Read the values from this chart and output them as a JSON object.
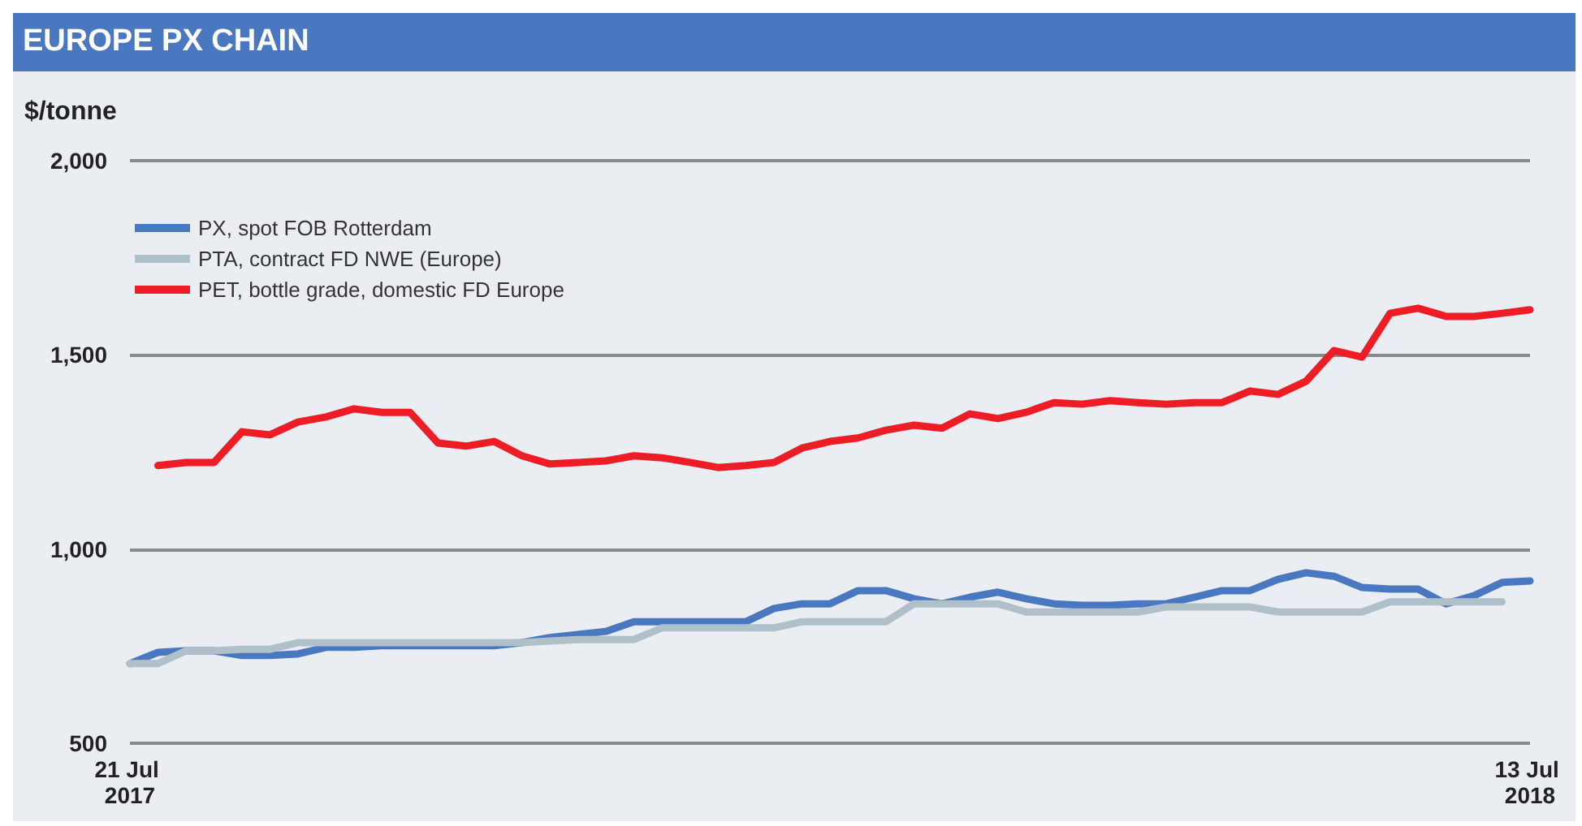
{
  "chart_data": {
    "type": "line",
    "title": "EUROPE PX CHAIN",
    "ylabel": "$/tonne",
    "categories": [
      "21 Jul 2017",
      null,
      null,
      null,
      null,
      null,
      null,
      null,
      null,
      null,
      null,
      null,
      null,
      null,
      null,
      null,
      null,
      null,
      null,
      null,
      null,
      null,
      null,
      null,
      null,
      null,
      null,
      null,
      null,
      null,
      null,
      null,
      null,
      null,
      null,
      null,
      null,
      null,
      null,
      null,
      null,
      null,
      null,
      null,
      null,
      null,
      null,
      null,
      null,
      null,
      "13 Jul 2018"
    ],
    "series": [
      {
        "name": "PX, spot FOB Rotterdam",
        "color": "#4a78c0",
        "values": [
          705,
          734,
          738,
          738,
          726,
          726,
          730,
          747,
          747,
          751,
          751,
          751,
          751,
          751,
          759,
          772,
          780,
          788,
          813,
          813,
          813,
          813,
          813,
          847,
          859,
          859,
          893,
          893,
          872,
          859,
          876,
          889,
          872,
          859,
          855,
          855,
          859,
          859,
          876,
          893,
          893,
          922,
          939,
          930,
          901,
          897,
          897,
          859,
          880,
          914,
          918
        ]
      },
      {
        "name": "PTA, contract FD NWE (Europe)",
        "color": "#b0c0c9",
        "values": [
          705,
          705,
          738,
          738,
          742,
          742,
          759,
          759,
          759,
          759,
          759,
          759,
          759,
          759,
          759,
          763,
          767,
          767,
          767,
          797,
          797,
          797,
          797,
          797,
          813,
          813,
          813,
          813,
          859,
          859,
          859,
          859,
          838,
          838,
          838,
          838,
          838,
          851,
          851,
          851,
          851,
          838,
          838,
          838,
          838,
          864,
          864,
          864,
          864,
          864,
          null
        ]
      },
      {
        "name": "PET, bottle grade, domestic FD Europe",
        "color": "#ee1c25",
        "values": [
          null,
          1215,
          1223,
          1223,
          1302,
          1294,
          1327,
          1340,
          1361,
          1352,
          1352,
          1273,
          1265,
          1277,
          1240,
          1219,
          1223,
          1227,
          1240,
          1235,
          1223,
          1210,
          1215,
          1223,
          1260,
          1277,
          1286,
          1306,
          1319,
          1311,
          1348,
          1336,
          1352,
          1377,
          1373,
          1382,
          1377,
          1373,
          1377,
          1377,
          1407,
          1398,
          1432,
          1511,
          1494,
          1607,
          1620,
          1599,
          1599,
          1607,
          1616
        ]
      }
    ],
    "ylim": [
      500,
      2000
    ],
    "yticks": [
      500,
      {
        "value": 1000,
        "label": "1,000"
      },
      {
        "value": 1500,
        "label": "1,500"
      },
      {
        "value": 2000,
        "label": "2,000"
      }
    ],
    "grid": "y",
    "legend": "top left",
    "marker": "none",
    "line_style": "solid"
  }
}
